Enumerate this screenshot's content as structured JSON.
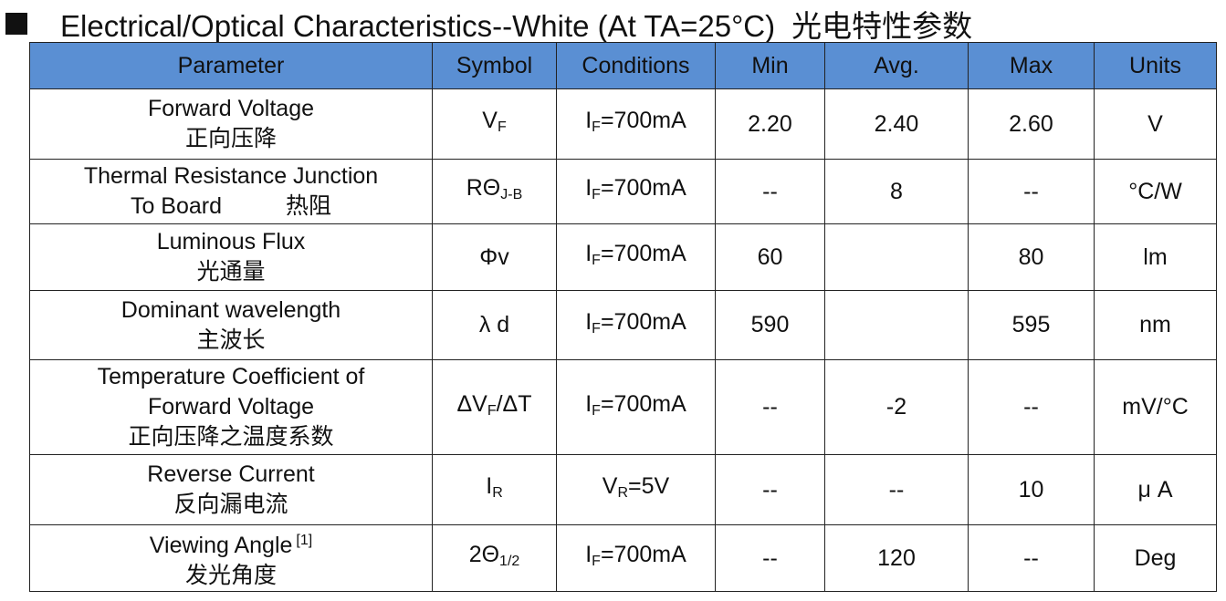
{
  "header": {
    "title": "Electrical/Optical Characteristics--White (At TA=25°C)",
    "title_cn": "光电特性参数"
  },
  "table": {
    "columns": [
      "Parameter",
      "Symbol",
      "Conditions",
      "Min",
      "Avg.",
      "Max",
      "Units"
    ],
    "rows": [
      {
        "parameter": {
          "lines": [
            [
              "Forward Voltage"
            ],
            [
              "正向压降"
            ]
          ]
        },
        "symbol": {
          "text": "V",
          "sub": "F"
        },
        "condition": {
          "text": "I",
          "sub": "F",
          "after": "=700mA"
        },
        "min": "2.20",
        "avg": "2.40",
        "max": "2.60",
        "units": "V"
      },
      {
        "parameter": {
          "lines": [
            [
              "Thermal Resistance Junction"
            ],
            [
              "To Board",
              "热阻"
            ]
          ]
        },
        "symbol": {
          "text": "RΘ",
          "sub": "J-B"
        },
        "condition": {
          "text": "I",
          "sub": "F",
          "after": "=700mA"
        },
        "min": "--",
        "avg": "8",
        "max": "--",
        "units": "°C/W"
      },
      {
        "parameter": {
          "lines": [
            [
              "Luminous Flux"
            ],
            [
              "光通量"
            ]
          ]
        },
        "symbol": {
          "text": "Φv"
        },
        "condition": {
          "text": "I",
          "sub": "F",
          "after": "=700mA"
        },
        "min": "60",
        "max": "80",
        "units": "lm"
      },
      {
        "parameter": {
          "lines": [
            [
              "Dominant wavelength"
            ],
            [
              "主波长"
            ]
          ]
        },
        "symbol": {
          "text": "λ d"
        },
        "condition": {
          "text": "I",
          "sub": "F",
          "after": "=700mA"
        },
        "min": "590",
        "max": "595",
        "units": "nm"
      },
      {
        "parameter": {
          "lines": [
            [
              "Temperature Coefficient of"
            ],
            [
              "Forward Voltage"
            ],
            [
              "正向压降之温度系数"
            ]
          ]
        },
        "symbol": {
          "text": "ΔV",
          "sub": "F",
          "after": "/ΔT"
        },
        "condition": {
          "text": "I",
          "sub": "F",
          "after": "=700mA"
        },
        "min": "--",
        "avg": "-2",
        "max": "--",
        "units": "mV/°C"
      },
      {
        "parameter": {
          "lines": [
            [
              "Reverse Current"
            ],
            [
              "反向漏电流"
            ]
          ]
        },
        "symbol": {
          "text": "I",
          "sub": "R"
        },
        "condition": {
          "text": "V",
          "sub": "R",
          "after": "=5V"
        },
        "min": "--",
        "avg": "--",
        "max": "10",
        "units": "μ A"
      },
      {
        "parameter": {
          "lines": [
            [
              "Viewing Angle"
            ],
            [
              "发光角度"
            ]
          ],
          "sup": "[1]"
        },
        "symbol": {
          "text": "2Θ",
          "sub": "1/2"
        },
        "condition": {
          "text": "I",
          "sub": "F",
          "after": "=700mA"
        },
        "min": "--",
        "avg": "120",
        "max": "--",
        "units": "Deg"
      }
    ]
  }
}
